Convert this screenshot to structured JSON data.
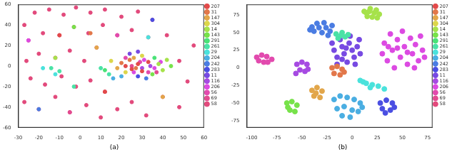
{
  "chart_data": [
    {
      "type": "scatter",
      "title": "(a)",
      "grid": false,
      "legend": "right",
      "xlim": [
        -30,
        60
      ],
      "xticks": [
        -30,
        -20,
        -10,
        0,
        10,
        20,
        30,
        40,
        50,
        60
      ],
      "ylim": [
        -60,
        60
      ],
      "yticks": [
        -60,
        -40,
        -20,
        0,
        20,
        40,
        60
      ],
      "series": [
        {
          "name": "207",
          "color": "#e24a4a",
          "x": [
            22,
            25,
            28,
            30,
            33,
            -10,
            12
          ],
          "y": [
            0,
            -3,
            2,
            -5,
            4,
            30,
            -25
          ]
        },
        {
          "name": "31",
          "color": "#e2774a",
          "x": [
            20,
            24,
            27,
            5
          ],
          "y": [
            3,
            6,
            -2,
            32
          ]
        },
        {
          "name": "147",
          "color": "#e2a64a",
          "x": [
            18,
            26,
            8,
            40
          ],
          "y": [
            -2,
            8,
            18,
            -30
          ]
        },
        {
          "name": "304",
          "color": "#dcd64a",
          "x": [
            15,
            22,
            30
          ],
          "y": [
            5,
            -6,
            10
          ]
        },
        {
          "name": "14",
          "color": "#a6e24a",
          "x": [
            38,
            40,
            42,
            -12
          ],
          "y": [
            2,
            -4,
            6,
            8
          ]
        },
        {
          "name": "143",
          "color": "#77e24a",
          "x": [
            35,
            44,
            -3
          ],
          "y": [
            -8,
            0,
            38
          ]
        },
        {
          "name": "291",
          "color": "#4ae277",
          "x": [
            36,
            12
          ],
          "y": [
            8,
            -4
          ]
        },
        {
          "name": "261",
          "color": "#4ae2a6",
          "x": [
            10,
            14,
            -10,
            -14,
            -3
          ],
          "y": [
            -2,
            -8,
            -5,
            -2,
            -20
          ]
        },
        {
          "name": "29",
          "color": "#4ae2dc",
          "x": [
            -18,
            -12,
            33
          ],
          "y": [
            -2,
            -8,
            28
          ]
        },
        {
          "name": "204",
          "color": "#4aaee2",
          "x": [
            16,
            20
          ],
          "y": [
            -12,
            -10
          ]
        },
        {
          "name": "242",
          "color": "#4a7ce2",
          "x": [
            32,
            -20
          ],
          "y": [
            -12,
            -42
          ]
        },
        {
          "name": "283",
          "color": "#4a4ee2",
          "x": [
            28,
            35
          ],
          "y": [
            -10,
            45
          ]
        },
        {
          "name": "11",
          "color": "#774ae2",
          "x": [
            24,
            28
          ],
          "y": [
            12,
            14
          ]
        },
        {
          "name": "116",
          "color": "#a64ae2",
          "x": [
            30,
            34
          ],
          "y": [
            -2,
            0
          ]
        },
        {
          "name": "206",
          "color": "#dc4ae2",
          "x": [
            26,
            31,
            36,
            39,
            -25
          ],
          "y": [
            -6,
            6,
            -2,
            4,
            25
          ]
        },
        {
          "name": "56",
          "color": "#e24aae",
          "x": [
            22,
            29,
            33,
            18
          ],
          "y": [
            8,
            4,
            -6,
            30
          ]
        },
        {
          "name": "69",
          "color": "#e24a90",
          "x": [
            25,
            37,
            -5
          ],
          "y": [
            0,
            -6,
            -45
          ]
        },
        {
          "name": "58",
          "color": "#e24a7c",
          "x": [
            -27,
            -22,
            -15,
            -8,
            -2,
            5,
            12,
            20,
            28,
            35,
            -25,
            -18,
            -10,
            -3,
            4,
            11,
            18,
            25,
            33,
            42,
            -26,
            -20,
            -12,
            -5,
            2,
            8,
            -24,
            -17,
            -9,
            -2,
            5,
            12,
            -27,
            -20,
            -12,
            -5,
            3,
            10,
            18,
            25,
            32,
            40,
            48,
            52,
            55,
            48
          ],
          "y": [
            40,
            52,
            55,
            50,
            57,
            52,
            55,
            48,
            53,
            45,
            25,
            32,
            30,
            38,
            32,
            40,
            30,
            35,
            28,
            30,
            5,
            12,
            8,
            15,
            5,
            18,
            -12,
            -18,
            -10,
            -20,
            -14,
            -25,
            -35,
            -42,
            -30,
            -45,
            -38,
            -50,
            -42,
            -35,
            -48,
            -30,
            -40,
            -15,
            20,
            5
          ]
        }
      ]
    },
    {
      "type": "scatter",
      "title": "(b)",
      "grid": false,
      "legend": "right",
      "xlim": [
        -105,
        80
      ],
      "xticks": [
        -100,
        -75,
        -50,
        -25,
        0,
        25,
        50,
        75
      ],
      "ylim": [
        -85,
        90
      ],
      "yticks": [
        -75,
        -50,
        -25,
        0,
        25,
        50,
        75
      ],
      "series": [
        {
          "name": "207",
          "color": "#e24a4a",
          "x": [],
          "y": []
        },
        {
          "name": "31",
          "color": "#e2774a",
          "x": [
            -20,
            -15,
            -10,
            -18,
            -12,
            -8
          ],
          "y": [
            0,
            2,
            -2,
            -8,
            -10,
            -6
          ]
        },
        {
          "name": "147",
          "color": "#e2a64a",
          "x": [
            -40,
            -35,
            -30,
            -38,
            -32,
            -36
          ],
          "y": [
            -32,
            -28,
            -33,
            -40,
            -42,
            -36
          ]
        },
        {
          "name": "304",
          "color": "#dcd64a",
          "x": [],
          "y": []
        },
        {
          "name": "14",
          "color": "#a6e24a",
          "x": [
            14,
            18,
            24,
            27,
            20,
            15,
            22,
            17,
            25,
            12
          ],
          "y": [
            78,
            84,
            82,
            76,
            72,
            73,
            78,
            80,
            71,
            80
          ]
        },
        {
          "name": "143",
          "color": "#77e24a",
          "x": [
            -65,
            -60,
            -55,
            -62,
            -57,
            -64
          ],
          "y": [
            -50,
            -48,
            -53,
            -60,
            -62,
            -56
          ]
        },
        {
          "name": "291",
          "color": "#4ae277",
          "x": [],
          "y": []
        },
        {
          "name": "261",
          "color": "#4ae2a6",
          "x": [
            -16,
            -10,
            -7,
            -14,
            -11,
            -4
          ],
          "y": [
            48,
            50,
            44,
            42,
            46,
            47
          ]
        },
        {
          "name": "29",
          "color": "#4ae2dc",
          "x": [
            8,
            14,
            20,
            26,
            32,
            18,
            11
          ],
          "y": [
            -18,
            -22,
            -24,
            -26,
            -30,
            -28,
            -20
          ]
        },
        {
          "name": "204",
          "color": "#4aaee2",
          "x": [
            -18,
            -12,
            -5,
            2,
            8,
            -15,
            -8,
            0,
            6,
            -10,
            -2,
            10
          ],
          "y": [
            -45,
            -40,
            -42,
            -45,
            -50,
            -58,
            -55,
            -60,
            -62,
            -68,
            -70,
            -56
          ]
        },
        {
          "name": "242",
          "color": "#4a7ce2",
          "x": [
            -40,
            -35,
            -28,
            -20,
            -22,
            -30,
            -38,
            -33,
            -26,
            -42,
            -24
          ],
          "y": [
            58,
            63,
            64,
            60,
            52,
            50,
            52,
            57,
            57,
            54,
            46
          ]
        },
        {
          "name": "283",
          "color": "#4a4ee2",
          "x": [
            28,
            34,
            40,
            30,
            38,
            42,
            33
          ],
          "y": [
            -50,
            -46,
            -50,
            -58,
            -60,
            -56,
            -64
          ]
        },
        {
          "name": "11",
          "color": "#774ae2",
          "x": [
            -20,
            -18,
            -15,
            -12,
            -10,
            -8,
            -5,
            -3,
            0,
            2,
            5,
            7,
            -15,
            -2,
            8,
            -10,
            -6,
            3
          ],
          "y": [
            35,
            25,
            15,
            40,
            30,
            20,
            8,
            35,
            25,
            15,
            30,
            40,
            5,
            45,
            20,
            12,
            28,
            5
          ]
        },
        {
          "name": "116",
          "color": "#a64ae2",
          "x": [
            -55,
            -50,
            -45,
            -52,
            -47,
            -56,
            -44
          ],
          "y": [
            5,
            8,
            5,
            -3,
            -5,
            -8,
            -2
          ]
        },
        {
          "name": "206",
          "color": "#dc4ae2",
          "x": [
            30,
            32,
            35,
            38,
            40,
            42,
            45,
            48,
            50,
            52,
            55,
            58,
            60,
            63,
            66,
            68,
            70,
            72,
            45,
            55,
            62,
            36
          ],
          "y": [
            20,
            35,
            10,
            48,
            25,
            0,
            40,
            15,
            52,
            30,
            5,
            42,
            20,
            33,
            10,
            45,
            25,
            15,
            28,
            22,
            0,
            30
          ]
        },
        {
          "name": "56",
          "color": "#e24aae",
          "x": [
            -95,
            -90,
            -85,
            -80,
            -88,
            -93,
            -84
          ],
          "y": [
            15,
            18,
            16,
            12,
            8,
            10,
            8
          ]
        },
        {
          "name": "69",
          "color": "#e24a90",
          "x": [],
          "y": []
        },
        {
          "name": "58",
          "color": "#e24a7c",
          "x": [],
          "y": []
        }
      ]
    }
  ]
}
